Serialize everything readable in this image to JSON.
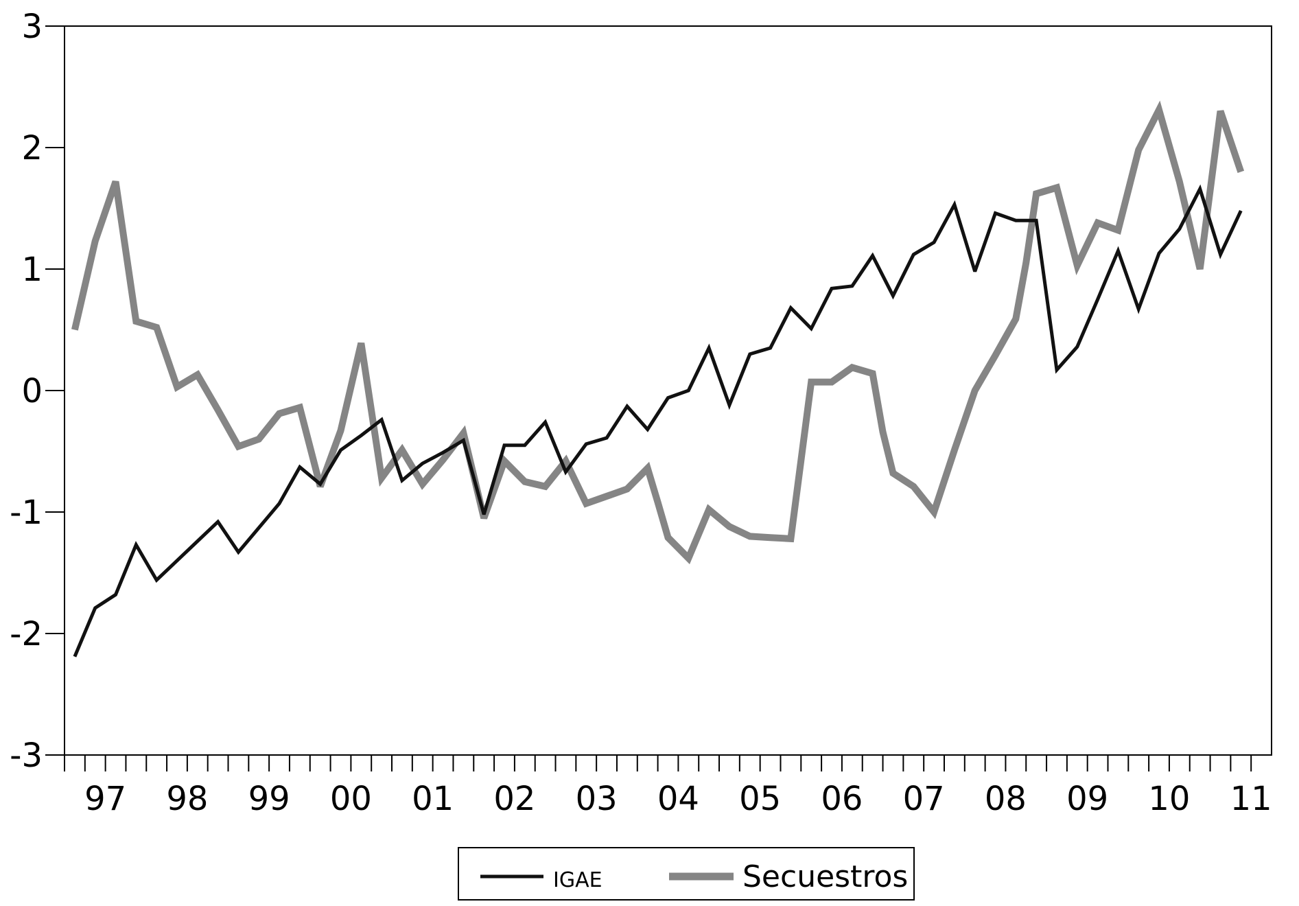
{
  "chart_data": {
    "type": "line",
    "title": "",
    "xlabel": "",
    "ylabel": "",
    "ylim": [
      -3,
      3
    ],
    "yticks": [
      3,
      2,
      1,
      0,
      -1,
      -2,
      -3
    ],
    "ytick_labels": [
      "3",
      "2",
      "1",
      "0",
      "-1",
      "-2",
      "-3"
    ],
    "xticks": [
      {
        "label": "97",
        "x": 1997.25
      },
      {
        "label": "98",
        "x": 1998.25
      },
      {
        "label": "99",
        "x": 1999.25
      },
      {
        "label": "00",
        "x": 2000.25
      },
      {
        "label": "01",
        "x": 2001.25
      },
      {
        "label": "02",
        "x": 2002.25
      },
      {
        "label": "03",
        "x": 2003.25
      },
      {
        "label": "04",
        "x": 2004.25
      },
      {
        "label": "05",
        "x": 2005.25
      },
      {
        "label": "06",
        "x": 2006.25
      },
      {
        "label": "07",
        "x": 2007.25
      },
      {
        "label": "08",
        "x": 2008.25
      },
      {
        "label": "09",
        "x": 2009.25
      },
      {
        "label": "10",
        "x": 2010.25
      },
      {
        "label": "11",
        "x": 2011.25
      }
    ],
    "xlim": [
      1996.75,
      2011.5
    ],
    "quarter_tick_start": 1996.75,
    "quarter_tick_count": 59,
    "grid": false,
    "legend_position": "bottom-center",
    "colors": {
      "IGAE": "#111111",
      "Secuestros": "#858585"
    },
    "series": [
      {
        "name": "IGAE",
        "points": [
          [
            1996.875,
            -2.19
          ],
          [
            1997.125,
            -1.79
          ],
          [
            1997.375,
            -1.68
          ],
          [
            1997.625,
            -1.27
          ],
          [
            1997.875,
            -1.56
          ],
          [
            1998.125,
            -1.4
          ],
          [
            1998.375,
            -1.24
          ],
          [
            1998.625,
            -1.08
          ],
          [
            1998.875,
            -1.33
          ],
          [
            1999.125,
            -1.13
          ],
          [
            1999.375,
            -0.93
          ],
          [
            1999.625,
            -0.63
          ],
          [
            1999.875,
            -0.77
          ],
          [
            2000.125,
            -0.49
          ],
          [
            2000.375,
            -0.37
          ],
          [
            2000.625,
            -0.24
          ],
          [
            2000.875,
            -0.74
          ],
          [
            2001.125,
            -0.6
          ],
          [
            2001.375,
            -0.51
          ],
          [
            2001.625,
            -0.41
          ],
          [
            2001.875,
            -1.02
          ],
          [
            2002.125,
            -0.45
          ],
          [
            2002.375,
            -0.45
          ],
          [
            2002.625,
            -0.26
          ],
          [
            2002.875,
            -0.67
          ],
          [
            2003.125,
            -0.44
          ],
          [
            2003.375,
            -0.39
          ],
          [
            2003.625,
            -0.13
          ],
          [
            2003.875,
            -0.32
          ],
          [
            2004.125,
            -0.06
          ],
          [
            2004.375,
            0.0
          ],
          [
            2004.625,
            0.35
          ],
          [
            2004.875,
            -0.12
          ],
          [
            2005.125,
            0.3
          ],
          [
            2005.375,
            0.35
          ],
          [
            2005.625,
            0.68
          ],
          [
            2005.875,
            0.51
          ],
          [
            2006.125,
            0.84
          ],
          [
            2006.375,
            0.86
          ],
          [
            2006.625,
            1.11
          ],
          [
            2006.875,
            0.78
          ],
          [
            2007.125,
            1.12
          ],
          [
            2007.375,
            1.22
          ],
          [
            2007.625,
            1.53
          ],
          [
            2007.875,
            0.98
          ],
          [
            2008.125,
            1.46
          ],
          [
            2008.375,
            1.4
          ],
          [
            2008.625,
            1.4
          ],
          [
            2008.875,
            0.17
          ],
          [
            2009.125,
            0.36
          ],
          [
            2009.375,
            0.75
          ],
          [
            2009.625,
            1.15
          ],
          [
            2009.875,
            0.67
          ],
          [
            2010.125,
            1.13
          ],
          [
            2010.375,
            1.33
          ],
          [
            2010.625,
            1.66
          ],
          [
            2010.875,
            1.12
          ],
          [
            2011.125,
            1.48
          ]
        ]
      },
      {
        "name": "Secuestros",
        "points": [
          [
            1996.875,
            0.5
          ],
          [
            1997.125,
            1.23
          ],
          [
            1997.375,
            1.72
          ],
          [
            1997.625,
            0.57
          ],
          [
            1997.875,
            0.52
          ],
          [
            1998.125,
            0.03
          ],
          [
            1998.375,
            0.13
          ],
          [
            1998.625,
            -0.16
          ],
          [
            1998.875,
            -0.46
          ],
          [
            1999.125,
            -0.4
          ],
          [
            1999.375,
            -0.19
          ],
          [
            1999.625,
            -0.14
          ],
          [
            1999.875,
            -0.79
          ],
          [
            2000.125,
            -0.33
          ],
          [
            2000.375,
            0.39
          ],
          [
            2000.625,
            -0.72
          ],
          [
            2000.875,
            -0.49
          ],
          [
            2001.125,
            -0.77
          ],
          [
            2001.375,
            -0.57
          ],
          [
            2001.625,
            -0.35
          ],
          [
            2001.875,
            -1.05
          ],
          [
            2002.125,
            -0.58
          ],
          [
            2002.375,
            -0.75
          ],
          [
            2002.625,
            -0.79
          ],
          [
            2002.875,
            -0.58
          ],
          [
            2003.125,
            -0.93
          ],
          [
            2003.375,
            -0.87
          ],
          [
            2003.625,
            -0.81
          ],
          [
            2003.875,
            -0.64
          ],
          [
            2004.0,
            -0.92
          ],
          [
            2004.125,
            -1.21
          ],
          [
            2004.375,
            -1.38
          ],
          [
            2004.625,
            -0.98
          ],
          [
            2004.875,
            -1.12
          ],
          [
            2005.125,
            -1.2
          ],
          [
            2005.375,
            -1.21
          ],
          [
            2005.625,
            -1.22
          ],
          [
            2005.875,
            0.07
          ],
          [
            2006.125,
            0.07
          ],
          [
            2006.375,
            0.19
          ],
          [
            2006.625,
            0.14
          ],
          [
            2006.75,
            -0.34
          ],
          [
            2006.875,
            -0.68
          ],
          [
            2007.125,
            -0.79
          ],
          [
            2007.375,
            -1.0
          ],
          [
            2007.625,
            -0.49
          ],
          [
            2007.875,
            0.0
          ],
          [
            2008.125,
            0.29
          ],
          [
            2008.375,
            0.59
          ],
          [
            2008.5,
            1.05
          ],
          [
            2008.625,
            1.62
          ],
          [
            2008.875,
            1.67
          ],
          [
            2009.125,
            1.03
          ],
          [
            2009.375,
            1.38
          ],
          [
            2009.625,
            1.32
          ],
          [
            2009.875,
            1.98
          ],
          [
            2010.125,
            2.31
          ],
          [
            2010.375,
            1.72
          ],
          [
            2010.625,
            1.0
          ],
          [
            2010.875,
            2.3
          ],
          [
            2011.125,
            1.8
          ]
        ]
      }
    ]
  },
  "legend": {
    "igae_label": "IGAE",
    "secuestros_label": "Secuestros"
  }
}
